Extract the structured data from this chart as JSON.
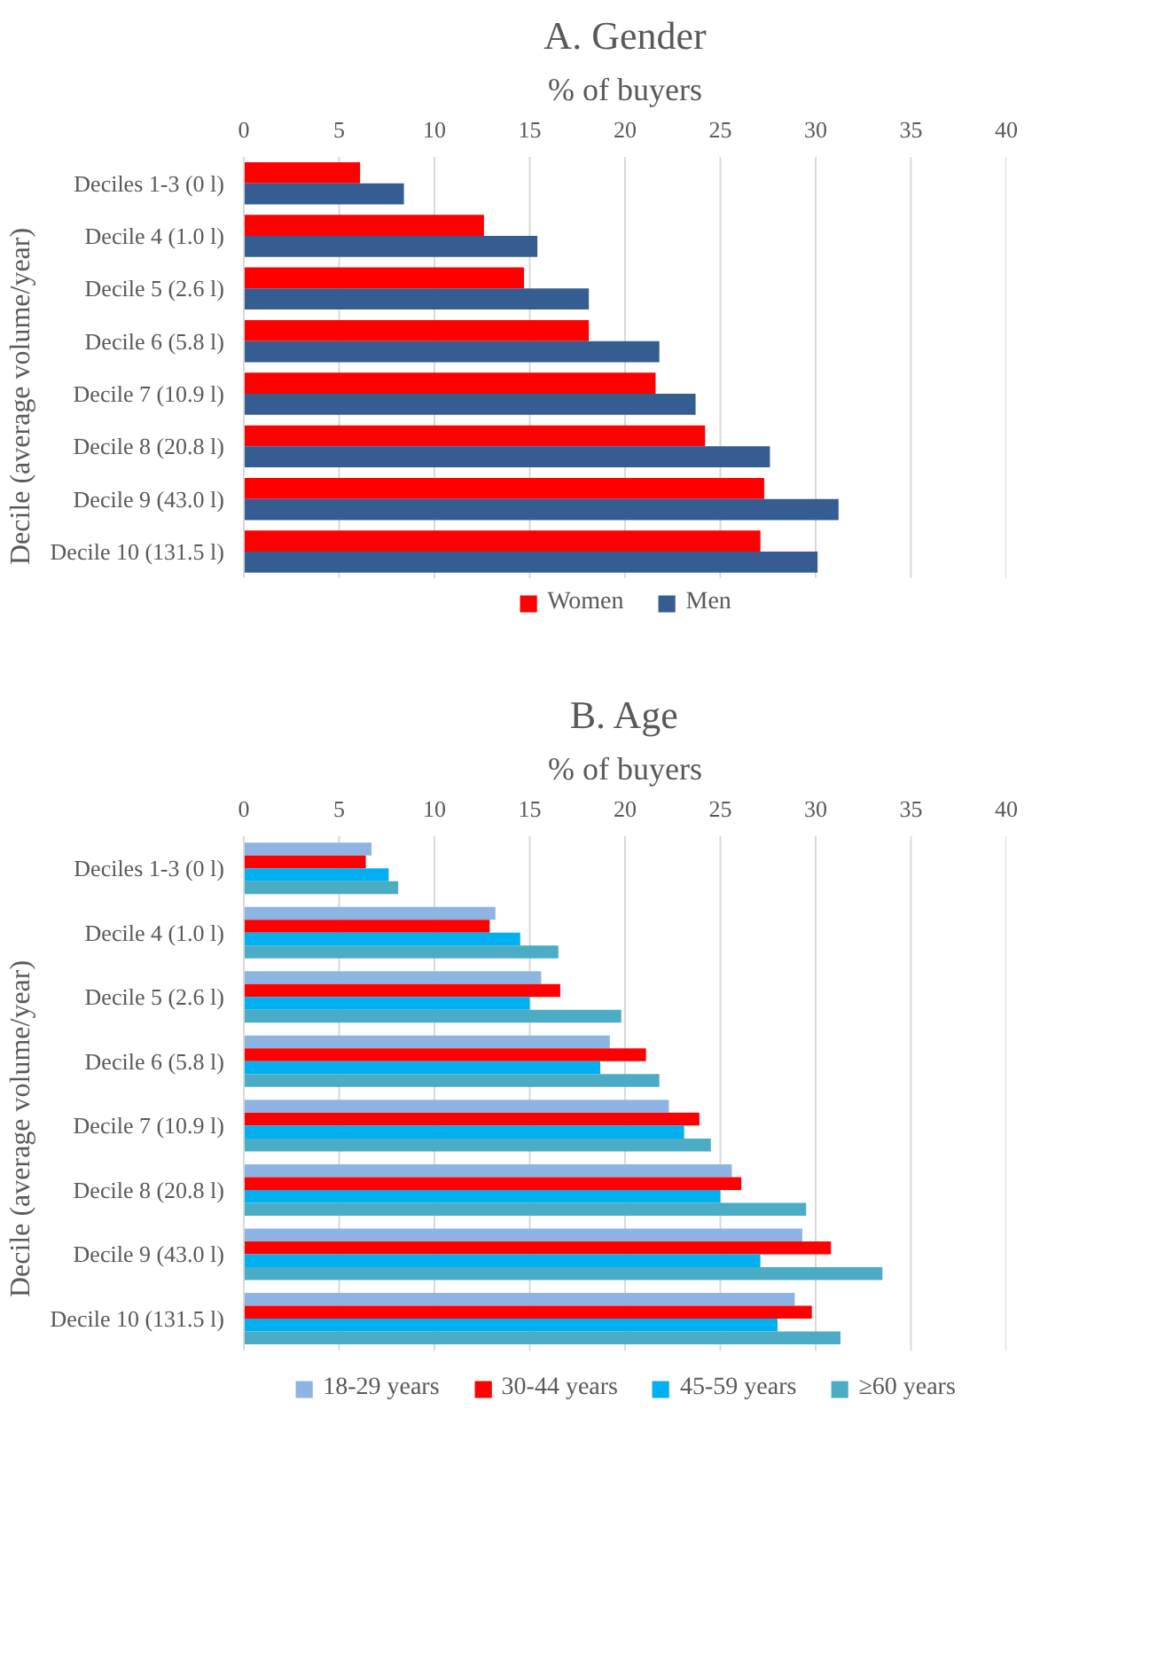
{
  "chart_data": [
    {
      "type": "bar",
      "orientation": "horizontal",
      "title": "A. Gender",
      "xlabel": "% of buyers",
      "ylabel": "Decile (average volume/year)",
      "categories": [
        "Deciles 1-3 (0 l)",
        "Decile 4 (1.0 l)",
        "Decile 5 (2.6 l)",
        "Decile 6 (5.8 l)",
        "Decile 7 (10.9 l)",
        "Decile 8 (20.8 l)",
        "Decile 9 (43.0 l)",
        "Decile 10 (131.5 l)"
      ],
      "series": [
        {
          "name": "Women",
          "color": "#ff0000",
          "values": [
            6.1,
            12.6,
            14.7,
            18.1,
            21.6,
            24.2,
            27.3,
            27.1
          ]
        },
        {
          "name": "Men",
          "color": "#355d91",
          "values": [
            8.4,
            15.4,
            18.1,
            21.8,
            23.7,
            27.6,
            31.2,
            30.1
          ]
        }
      ],
      "xlim": [
        0,
        40
      ],
      "xticks": [
        0,
        5,
        10,
        15,
        20,
        25,
        30,
        35,
        40
      ],
      "grid": "x",
      "legend": "bottom"
    },
    {
      "type": "bar",
      "orientation": "horizontal",
      "title": "B. Age",
      "xlabel": "% of buyers",
      "ylabel": "Decile (average volume/year)",
      "categories": [
        "Deciles 1-3 (0 l)",
        "Decile 4 (1.0 l)",
        "Decile 5 (2.6 l)",
        "Decile 6 (5.8 l)",
        "Decile 7 (10.9 l)",
        "Decile 8 (20.8 l)",
        "Decile 9 (43.0 l)",
        "Decile 10 (131.5 l)"
      ],
      "series": [
        {
          "name": "18-29 years",
          "color": "#8eb4e3",
          "values": [
            6.7,
            13.2,
            15.6,
            19.2,
            22.3,
            25.6,
            29.3,
            28.9
          ]
        },
        {
          "name": "30-44 years",
          "color": "#ff0000",
          "values": [
            6.4,
            12.9,
            16.6,
            21.1,
            23.9,
            26.1,
            30.8,
            29.8
          ]
        },
        {
          "name": "45-59 years",
          "color": "#00b0f0",
          "values": [
            7.6,
            14.5,
            15.0,
            18.7,
            23.1,
            25.0,
            27.1,
            28.0
          ]
        },
        {
          "name": "≥60 years",
          "color": "#4bacc6",
          "values": [
            8.1,
            16.5,
            19.8,
            21.8,
            24.5,
            29.5,
            33.5,
            31.3
          ]
        }
      ],
      "xlim": [
        0,
        40
      ],
      "xticks": [
        0,
        5,
        10,
        15,
        20,
        25,
        30,
        35,
        40
      ],
      "grid": "x",
      "legend": "bottom"
    }
  ]
}
